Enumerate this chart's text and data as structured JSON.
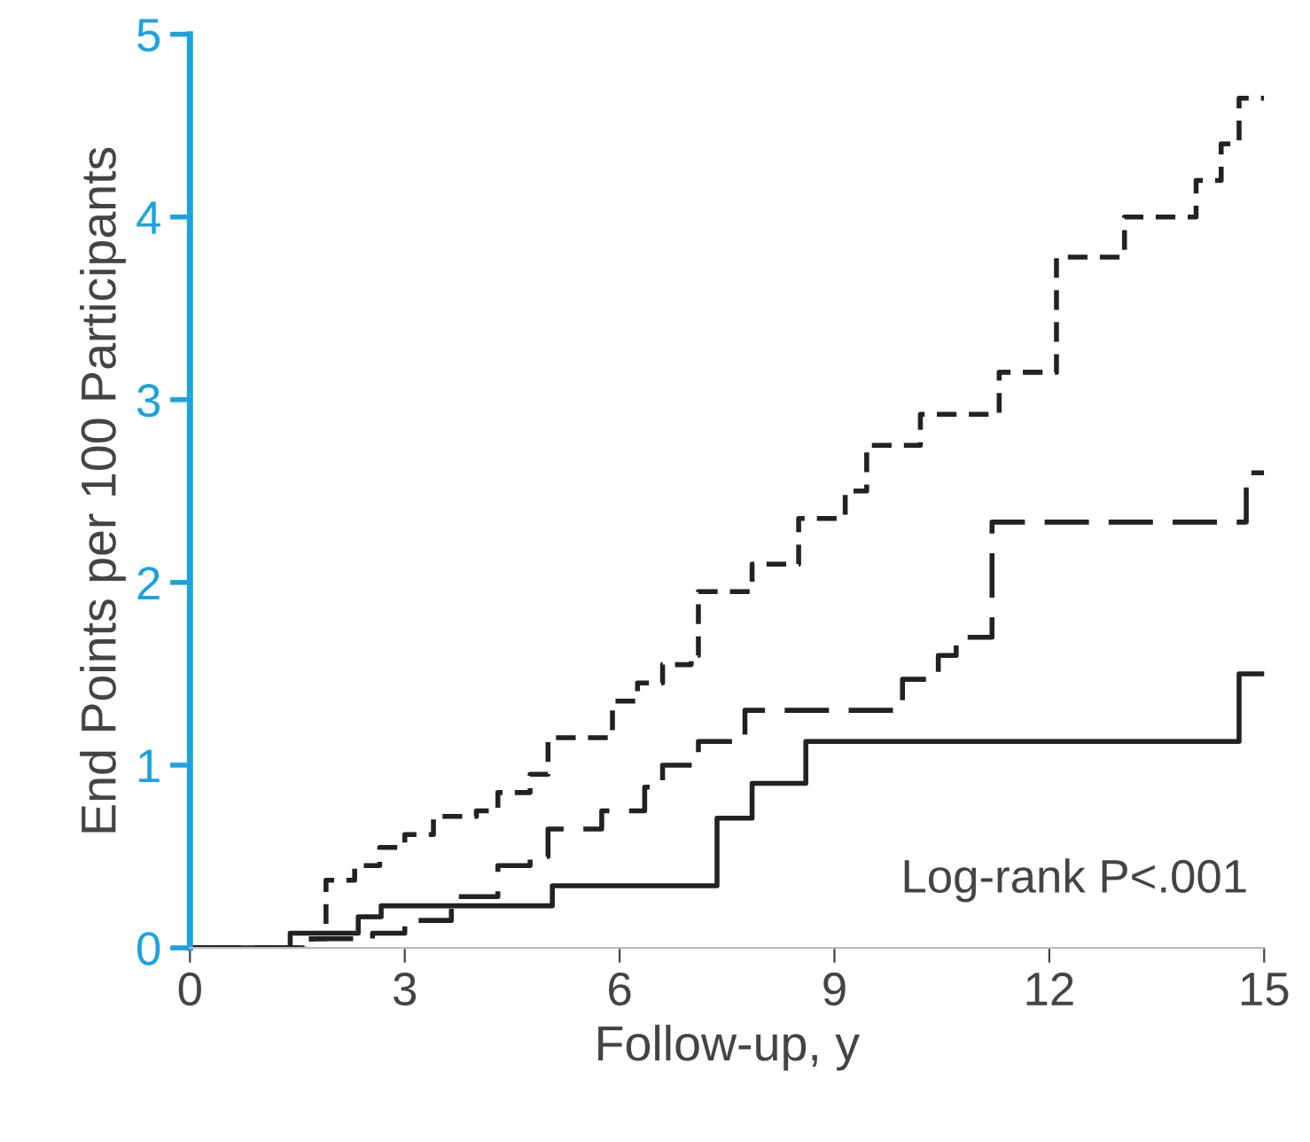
{
  "chart_data": {
    "type": "step",
    "xlabel": "Follow-up, y",
    "ylabel": "End Points per 100 Participants",
    "xlim": [
      0,
      15
    ],
    "xticks": [
      0,
      3,
      6,
      9,
      12,
      15
    ],
    "ylim": [
      0,
      5
    ],
    "yticks": [
      0,
      1,
      2,
      3,
      4,
      5
    ],
    "grid": false,
    "legend": false,
    "annotations": [
      "Log-rank P<.001"
    ],
    "series": [
      {
        "color": "#222222",
        "line_style": "dotted",
        "x": [
          0,
          1.6,
          1.9,
          2.3,
          2.65,
          3.0,
          3.4,
          4.0,
          4.3,
          4.75,
          5.0,
          5.9,
          6.25,
          6.6,
          7.0,
          7.1,
          7.85,
          8.5,
          9.15,
          9.45,
          10.2,
          11.3,
          12.1,
          13.05,
          14.05,
          14.4,
          14.65,
          15
        ],
        "values": [
          0,
          0.05,
          0.37,
          0.45,
          0.55,
          0.62,
          0.72,
          0.75,
          0.85,
          0.95,
          1.15,
          1.35,
          1.45,
          1.55,
          1.6,
          1.95,
          2.1,
          2.35,
          2.5,
          2.75,
          2.92,
          3.15,
          3.78,
          4.0,
          4.2,
          4.4,
          4.65,
          4.65
        ]
      },
      {
        "color": "#222222",
        "line_style": "dashed",
        "x": [
          0,
          1.7,
          2.55,
          3.0,
          3.65,
          4.3,
          4.75,
          5.0,
          5.75,
          6.35,
          6.6,
          7.1,
          7.75,
          9.95,
          10.45,
          10.7,
          11.2,
          14.75,
          15
        ],
        "values": [
          0,
          0.05,
          0.08,
          0.15,
          0.28,
          0.45,
          0.5,
          0.65,
          0.75,
          0.88,
          1.0,
          1.13,
          1.3,
          1.47,
          1.6,
          1.7,
          2.33,
          2.6,
          2.6
        ]
      },
      {
        "color": "#222222",
        "line_style": "solid",
        "x": [
          0,
          1.4,
          2.35,
          2.67,
          5.06,
          7.36,
          7.85,
          8.6,
          14.65,
          15
        ],
        "values": [
          0,
          0.08,
          0.17,
          0.23,
          0.34,
          0.71,
          0.9,
          1.13,
          1.5,
          1.5
        ]
      }
    ]
  }
}
